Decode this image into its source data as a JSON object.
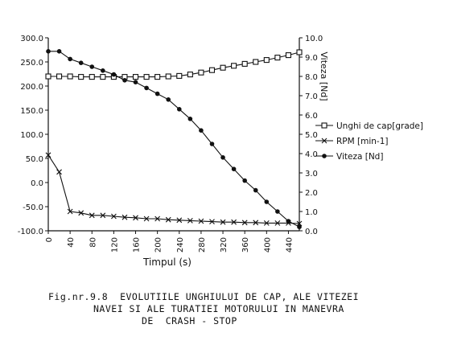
{
  "chart_data": {
    "type": "line",
    "xlabel": "Timpul (s)",
    "y_left_ticks": [
      "300.0",
      "250.0",
      "200.0",
      "150.0",
      "100.0",
      "50.0",
      "0.0",
      "-50.0",
      "-100.0"
    ],
    "y_right_label": "Viteza [Nd]",
    "y_right_ticks": [
      "10.0",
      "9.0",
      "8.0",
      "7.0",
      "6.0",
      "5.0",
      "4.0",
      "3.0",
      "2.0",
      "1.0",
      "0.0"
    ],
    "x_ticks": [
      "0",
      "40",
      "80",
      "120",
      "160",
      "200",
      "240",
      "280",
      "320",
      "360",
      "400",
      "440"
    ],
    "ylim_left": [
      -100,
      300
    ],
    "ylim_right": [
      0,
      10
    ],
    "xlim": [
      0,
      460
    ],
    "grid": false,
    "legend_position": "right",
    "series": [
      {
        "name": "Unghi de cap[grade]",
        "axis": "left",
        "marker": "square",
        "x": [
          0,
          20,
          40,
          60,
          80,
          100,
          120,
          140,
          160,
          180,
          200,
          220,
          240,
          260,
          280,
          300,
          320,
          340,
          360,
          380,
          400,
          420,
          440,
          460
        ],
        "values": [
          220,
          220,
          220,
          219,
          219,
          219,
          219,
          219,
          219,
          219,
          219,
          220,
          221,
          224,
          228,
          233,
          238,
          242,
          246,
          250,
          254,
          259,
          264,
          270
        ]
      },
      {
        "name": "RPM [min-1]",
        "axis": "left",
        "marker": "x",
        "x": [
          0,
          20,
          40,
          60,
          80,
          100,
          120,
          140,
          160,
          180,
          200,
          220,
          240,
          260,
          280,
          300,
          320,
          340,
          360,
          380,
          400,
          420,
          440,
          460
        ],
        "values": [
          57,
          22,
          -60,
          -63,
          -68,
          -68,
          -70,
          -72,
          -73,
          -75,
          -75,
          -77,
          -78,
          -79,
          -80,
          -81,
          -82,
          -82,
          -83,
          -83,
          -84,
          -84,
          -84,
          -85
        ]
      },
      {
        "name": "Viteza [Nd]",
        "axis": "right",
        "marker": "dot",
        "x": [
          0,
          20,
          40,
          60,
          80,
          100,
          120,
          140,
          160,
          180,
          200,
          220,
          240,
          260,
          280,
          300,
          320,
          340,
          360,
          380,
          400,
          420,
          440,
          460
        ],
        "values": [
          9.3,
          9.3,
          8.9,
          8.7,
          8.5,
          8.3,
          8.1,
          7.8,
          7.7,
          7.4,
          7.1,
          6.8,
          6.3,
          5.8,
          5.2,
          4.5,
          3.8,
          3.2,
          2.6,
          2.1,
          1.5,
          1.0,
          0.5,
          0.2
        ]
      }
    ]
  },
  "caption": {
    "line1": "Fig.nr.9.8  EVOLUTIILE UNGHIULUI DE CAP, ALE VITEZEI",
    "line2": "NAVEI SI ALE TURATIEI MOTORULUI IN MANEVRA",
    "line3": "DE  CRASH - STOP"
  }
}
